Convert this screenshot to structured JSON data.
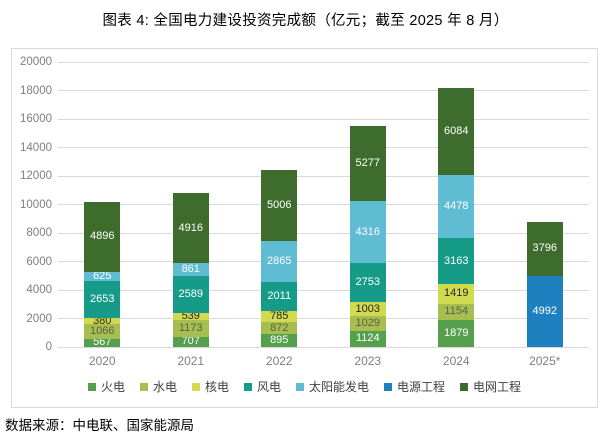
{
  "title": "图表 4: 全国电力建设投资完成额（亿元；截至 2025 年 8 月）",
  "source_note": "数据来源：中电联、国家能源局",
  "styles": {
    "grid_color": "#d9d9d9",
    "frame_border_color": "#d9d9d9",
    "axis_text_color": "#7f7f7f",
    "legend_text_color": "#404040",
    "title_color": "#000000"
  },
  "chart_data": {
    "type": "bar",
    "stacked": true,
    "title": "图表 4: 全国电力建设投资完成额（亿元；截至 2025 年 8 月）",
    "xlabel": "",
    "ylabel": "",
    "ylim": [
      0,
      20000
    ],
    "yticks": [
      0,
      2000,
      4000,
      6000,
      8000,
      10000,
      12000,
      14000,
      16000,
      18000,
      20000
    ],
    "grid": true,
    "legend_position": "bottom",
    "categories": [
      "2020",
      "2021",
      "2022",
      "2023",
      "2024",
      "2025*"
    ],
    "series": [
      {
        "name": "火电",
        "color": "#55A04C",
        "label_color": "#ffffff",
        "values": [
          567,
          707,
          895,
          1124,
          1879,
          null
        ]
      },
      {
        "name": "水电",
        "color": "#A6BE4F",
        "label_color": "#5e5e46",
        "values": [
          1066,
          1173,
          872,
          1029,
          1154,
          null
        ]
      },
      {
        "name": "核电",
        "color": "#D1D94F",
        "label_color": "#262626",
        "values": [
          380,
          539,
          785,
          1003,
          1419,
          null
        ]
      },
      {
        "name": "风电",
        "color": "#169B88",
        "label_color": "#ffffff",
        "values": [
          2653,
          2589,
          2011,
          2753,
          3163,
          null
        ]
      },
      {
        "name": "太阳能发电",
        "color": "#5FBCD3",
        "label_color": "#ffffff",
        "values": [
          625,
          861,
          2865,
          4316,
          4478,
          null
        ]
      },
      {
        "name": "电源工程",
        "color": "#1F80BF",
        "label_color": "#ffffff",
        "values": [
          null,
          null,
          null,
          null,
          null,
          4992
        ]
      },
      {
        "name": "电网工程",
        "color": "#3D6C2D",
        "label_color": "#ffffff",
        "values": [
          4896,
          4916,
          5006,
          5277,
          6084,
          3796
        ]
      }
    ]
  }
}
